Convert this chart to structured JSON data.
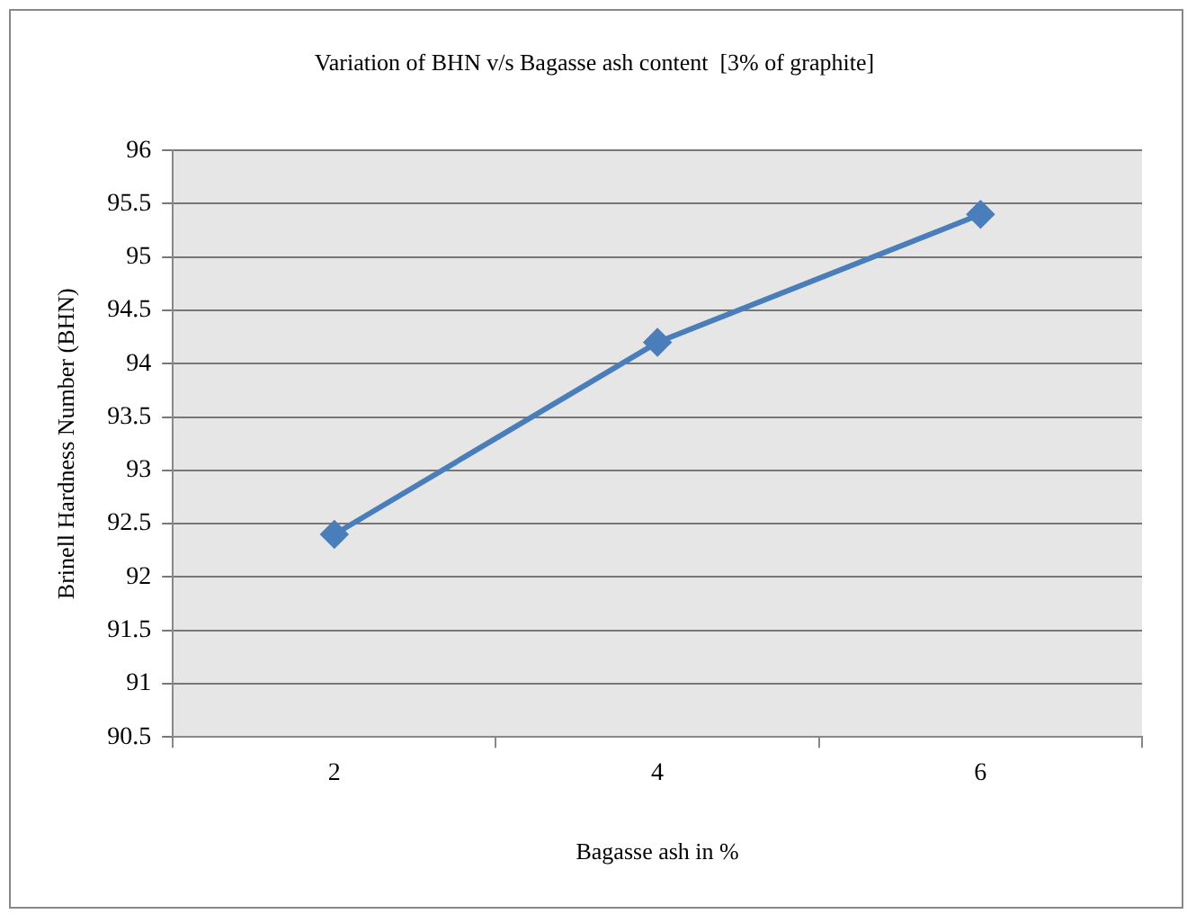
{
  "chart_data": {
    "type": "line",
    "title": "Variation of BHN v/s Bagasse ash content  [3% of graphite]",
    "xlabel": "Bagasse ash in %",
    "ylabel": "Brinell Hardness Number (BHN)",
    "categories": [
      "2",
      "4",
      "6"
    ],
    "series": [
      {
        "color": "#4a7ebb",
        "values": [
          92.4,
          94.2,
          95.4
        ]
      }
    ],
    "ylim": [
      90.5,
      96
    ],
    "yticks": [
      90.5,
      91,
      91.5,
      92,
      92.5,
      93,
      93.5,
      94,
      94.5,
      95,
      95.5,
      96
    ],
    "grid": "y",
    "legend": false,
    "marker": "diamond",
    "line_style": "solid"
  }
}
